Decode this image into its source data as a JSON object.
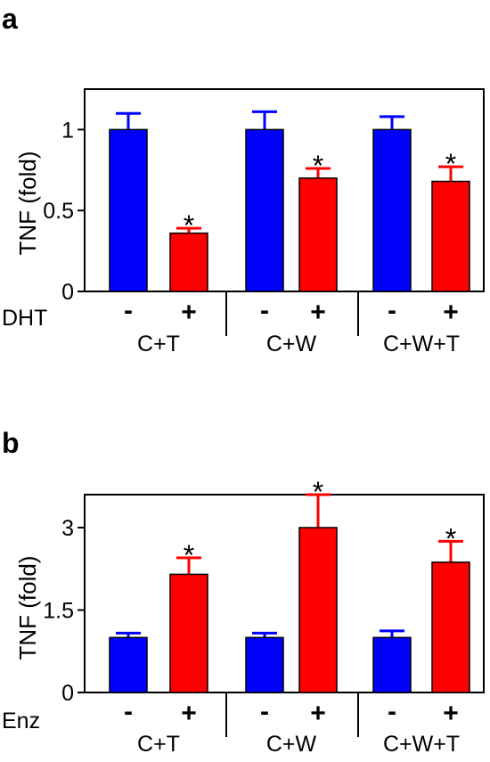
{
  "panels": [
    {
      "letter": "a",
      "ylabel": "TNF (fold)",
      "treatment": "DHT",
      "ylim": [
        0,
        1.25
      ],
      "yticks": [
        {
          "v": 0,
          "label": "0"
        },
        {
          "v": 0.5,
          "label": "0.5"
        },
        {
          "v": 1,
          "label": "1"
        }
      ]
    },
    {
      "letter": "b",
      "ylabel": "TNF (fold)",
      "treatment": "Enz",
      "ylim": [
        0,
        3.6
      ],
      "yticks": [
        {
          "v": 0,
          "label": "0"
        },
        {
          "v": 1.5,
          "label": "1.5"
        },
        {
          "v": 3,
          "label": "3"
        }
      ]
    }
  ],
  "colors": {
    "minus": "#0000ff",
    "plus": "#ff0000",
    "axis": "#000000"
  },
  "chart_data": [
    {
      "type": "bar",
      "panel": "a",
      "ylabel": "TNF (fold)",
      "treatment_label": "DHT",
      "groups": [
        "C+T",
        "C+W",
        "C+W+T"
      ],
      "bar_labels": [
        "-",
        "+",
        "-",
        "+",
        "-",
        "+"
      ],
      "series": [
        {
          "name": "-",
          "values": [
            1.0,
            1.0,
            1.0
          ],
          "errors": [
            0.1,
            0.11,
            0.08
          ]
        },
        {
          "name": "+",
          "values": [
            0.36,
            0.7,
            0.68
          ],
          "errors": [
            0.03,
            0.06,
            0.09
          ]
        }
      ],
      "significance": [
        "",
        "*",
        "",
        "*",
        "",
        "*"
      ],
      "ylim": [
        0,
        1.25
      ]
    },
    {
      "type": "bar",
      "panel": "b",
      "ylabel": "TNF (fold)",
      "treatment_label": "Enz",
      "groups": [
        "C+T",
        "C+W",
        "C+W+T"
      ],
      "bar_labels": [
        "-",
        "+",
        "-",
        "+",
        "-",
        "+"
      ],
      "series": [
        {
          "name": "-",
          "values": [
            1.0,
            1.0,
            1.0
          ],
          "errors": [
            0.08,
            0.08,
            0.12
          ]
        },
        {
          "name": "+",
          "values": [
            2.15,
            3.0,
            2.37
          ],
          "errors": [
            0.3,
            0.6,
            0.38
          ]
        }
      ],
      "significance": [
        "",
        "*",
        "",
        "*",
        "",
        "*"
      ],
      "ylim": [
        0,
        3.6
      ]
    }
  ]
}
